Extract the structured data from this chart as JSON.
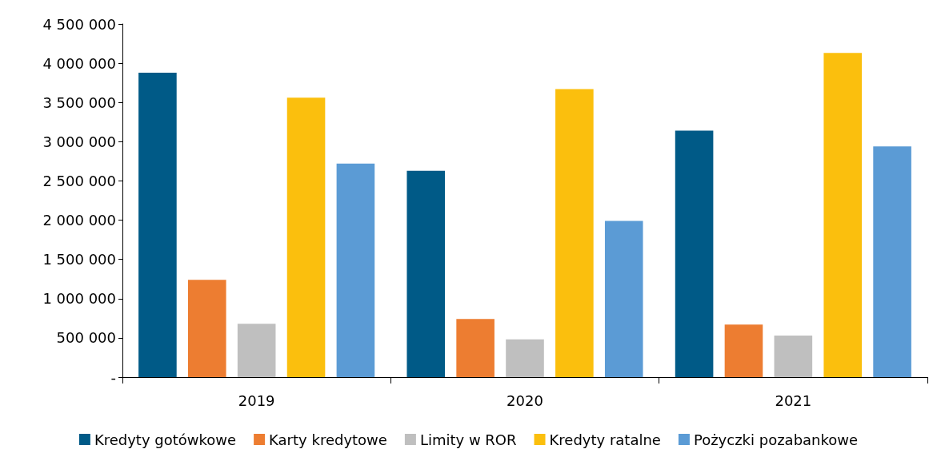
{
  "chart_data": {
    "type": "bar",
    "categories": [
      "2019",
      "2020",
      "2021"
    ],
    "series": [
      {
        "name": "Kredyty gotówkowe",
        "color": "#005a87",
        "values": [
          3880000,
          2630000,
          3140000
        ]
      },
      {
        "name": "Karty kredytowe",
        "color": "#ed7d31",
        "values": [
          1240000,
          740000,
          670000
        ]
      },
      {
        "name": "Limity w ROR",
        "color": "#bfbfbf",
        "values": [
          680000,
          480000,
          530000
        ]
      },
      {
        "name": "Kredyty ratalne",
        "color": "#fbbf0d",
        "values": [
          3560000,
          3670000,
          4130000
        ]
      },
      {
        "name": "Pożyczki pozabankowe",
        "color": "#5b9bd5",
        "values": [
          2720000,
          1990000,
          2940000
        ]
      }
    ],
    "ylim": [
      0,
      4500000
    ],
    "yticks": [
      {
        "value": 0,
        "label": "-"
      },
      {
        "value": 500000,
        "label": "500 000"
      },
      {
        "value": 1000000,
        "label": "1 000 000"
      },
      {
        "value": 1500000,
        "label": "1 500 000"
      },
      {
        "value": 2000000,
        "label": "2 000 000"
      },
      {
        "value": 2500000,
        "label": "2 500 000"
      },
      {
        "value": 3000000,
        "label": "3 000 000"
      },
      {
        "value": 3500000,
        "label": "3 500 000"
      },
      {
        "value": 4000000,
        "label": "4 000 000"
      },
      {
        "value": 4500000,
        "label": "4 500 000"
      }
    ],
    "grid": false,
    "legend": "bottom"
  }
}
